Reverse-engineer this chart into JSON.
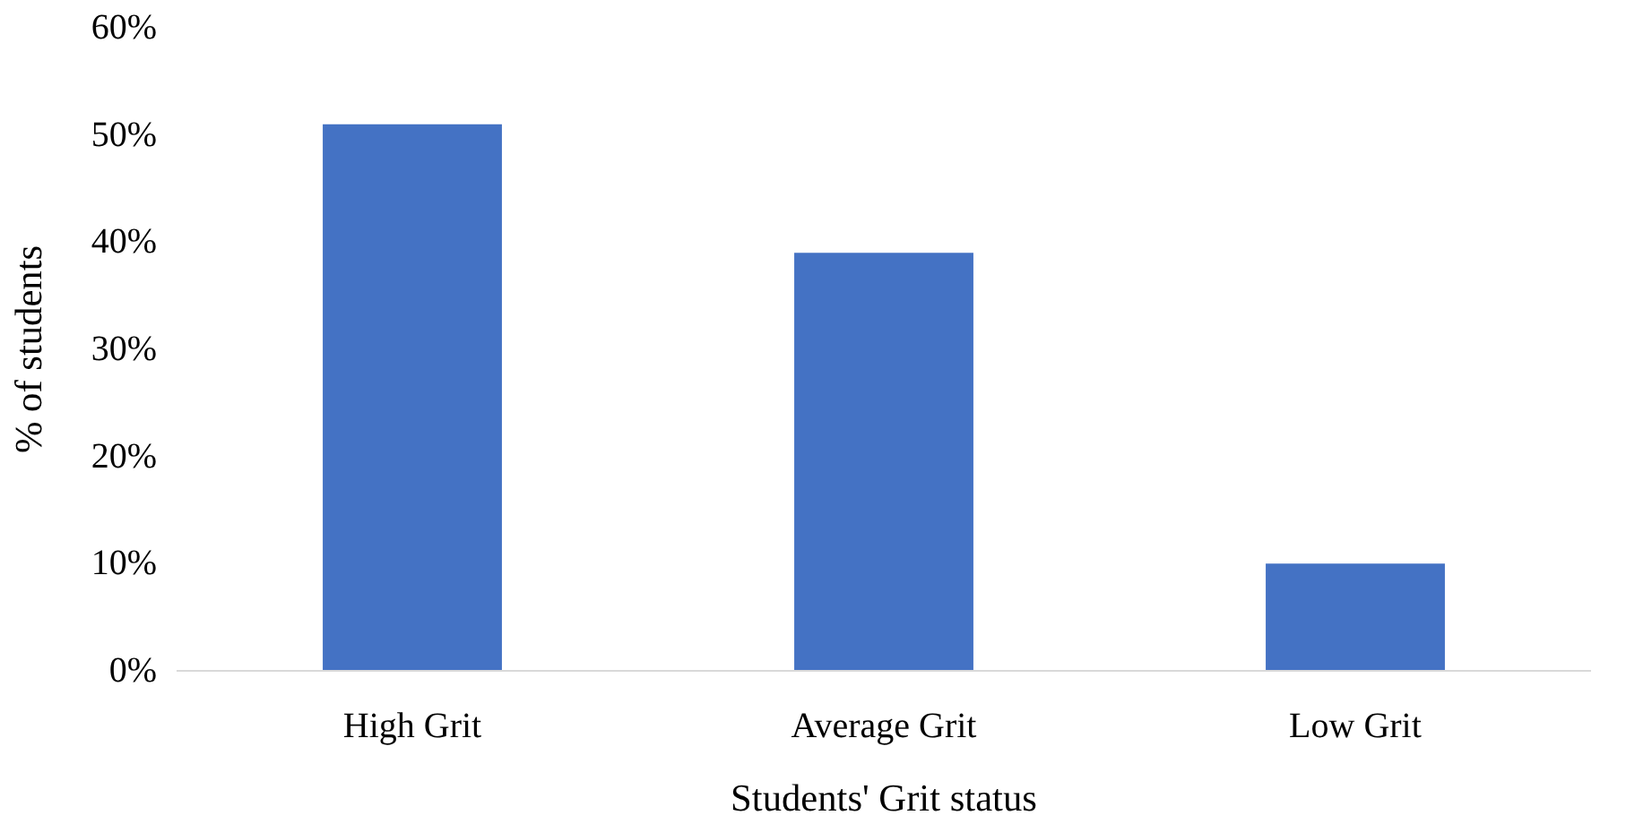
{
  "chart_data": {
    "type": "bar",
    "xlabel": "Students' Grit status",
    "ylabel": "% of students",
    "categories": [
      "High Grit",
      "Average Grit",
      "Low Grit"
    ],
    "values": [
      51,
      39,
      10
    ],
    "color": "#4472c4",
    "ylim": [
      0,
      60
    ],
    "yticks": [
      {
        "value": 0,
        "label": "0%"
      },
      {
        "value": 10,
        "label": "10%"
      },
      {
        "value": 20,
        "label": "20%"
      },
      {
        "value": 30,
        "label": "30%"
      },
      {
        "value": 40,
        "label": "40%"
      },
      {
        "value": 50,
        "label": "50%"
      },
      {
        "value": 60,
        "label": "60%"
      }
    ],
    "grid": false
  }
}
